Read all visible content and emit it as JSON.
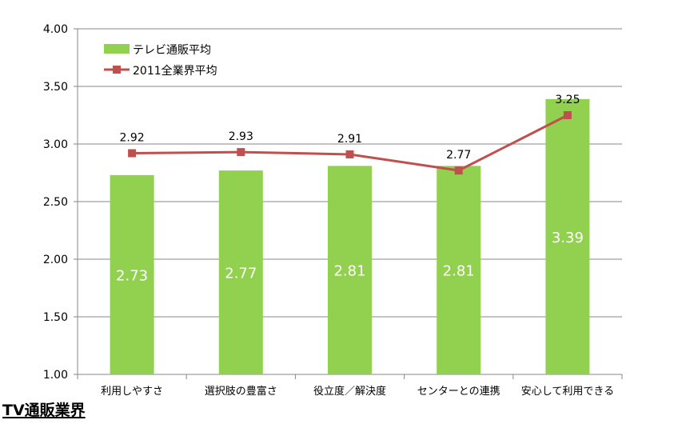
{
  "chart_data": {
    "type": "bar",
    "categories": [
      "利用しやすさ",
      "選択肢の豊富さ",
      "役立度／解決度",
      "センターとの連携",
      "安心して利用できる"
    ],
    "series": [
      {
        "name": "テレビ通販平均",
        "type": "bar",
        "values": [
          2.73,
          2.77,
          2.81,
          2.81,
          3.39
        ],
        "value_labels": [
          "2.73",
          "2.77",
          "2.81",
          "2.81",
          "3.39"
        ],
        "color": "#92d050"
      },
      {
        "name": "2011全業界平均",
        "type": "line",
        "values": [
          2.92,
          2.93,
          2.91,
          2.77,
          3.25
        ],
        "value_labels": [
          "2.92",
          "2.93",
          "2.91",
          "2.77",
          "3.25"
        ],
        "color": "#c0504d"
      }
    ],
    "y_ticks": [
      "1.00",
      "1.50",
      "2.00",
      "2.50",
      "3.00",
      "3.50",
      "4.00"
    ],
    "ylim": [
      1.0,
      4.0
    ],
    "grid": true,
    "legend_position": "top-left"
  },
  "footer": {
    "title": "TV通販業界"
  }
}
